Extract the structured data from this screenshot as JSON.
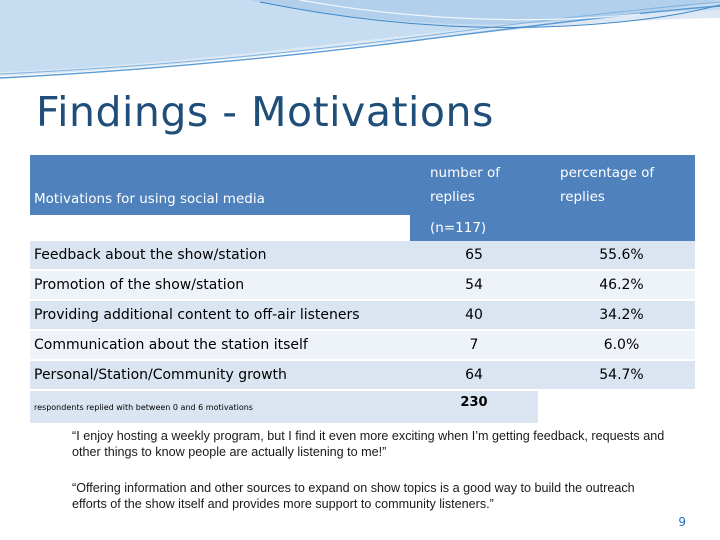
{
  "slide": {
    "title": "Findings - Motivations",
    "page_number": "9"
  },
  "table": {
    "header": {
      "col1": "Motivations for using social media",
      "col2_line1": "number of",
      "col2_line2": "replies",
      "col2_sub": "(n=117)",
      "col3_line1": "percentage of",
      "col3_line2": "replies"
    },
    "rows": [
      {
        "label": "Feedback about the show/station",
        "count": "65",
        "percent": "55.6%"
      },
      {
        "label": "Promotion of the show/station",
        "count": "54",
        "percent": "46.2%"
      },
      {
        "label": "Providing additional content to off-air listeners",
        "count": "40",
        "percent": "34.2%"
      },
      {
        "label": "Communication about the station itself",
        "count": "7",
        "percent": "6.0%"
      },
      {
        "label": "Personal/Station/Community growth",
        "count": "64",
        "percent": "54.7%"
      }
    ],
    "footer": {
      "note": "respondents replied with between 0 and 6 motivations",
      "total": "230"
    }
  },
  "quotes": [
    "“I enjoy hosting a weekly program, but I find it even more exciting when I’m getting feedback, requests and other things to know people are actually listening to me!”",
    "“Offering information and other sources to expand on show topics is a good way to build the outreach efforts of the show itself and provides more support to community listeners.”"
  ],
  "colors": {
    "header_bg": "#4f81bd",
    "row_band_a": "#dbe5f1",
    "row_band_b": "#eef3f9",
    "title": "#1f4e79"
  }
}
